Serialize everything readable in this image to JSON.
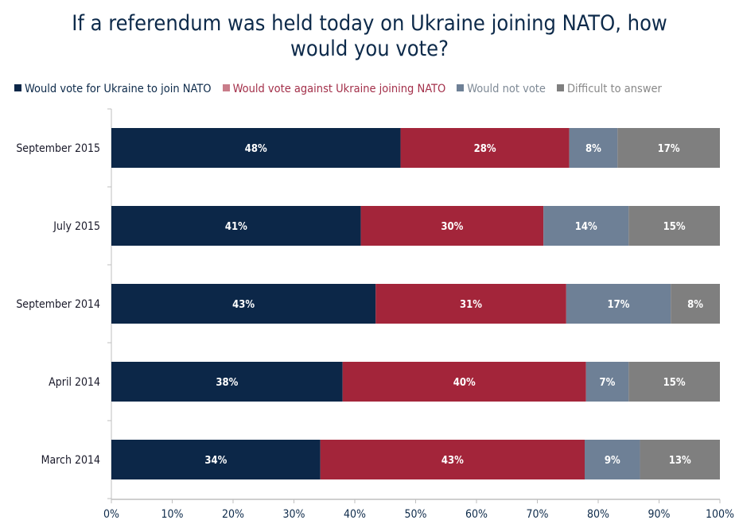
{
  "chart_data": {
    "type": "bar",
    "orientation": "horizontal",
    "stacked": true,
    "title": "If a referendum was held today on Ukraine joining NATO, how would you vote?",
    "title_lines": [
      "If a referendum was held today on Ukraine joining NATO, how",
      "would you vote?"
    ],
    "categories": [
      "September 2015",
      "July 2015",
      "September 2014",
      "April 2014",
      "March 2014"
    ],
    "series": [
      {
        "name": "Would vote for Ukraine to join NATO",
        "color": "#0c2748",
        "legend_color": "#0c2748",
        "text_color": "#0d2a4a",
        "values": [
          48,
          41,
          43,
          38,
          34
        ]
      },
      {
        "name": "Would vote against Ukraine joining NATO",
        "color": "#a3253a",
        "legend_color": "#c97d8a",
        "text_color": "#a3304a",
        "values": [
          28,
          30,
          31,
          40,
          43
        ]
      },
      {
        "name": "Would not vote",
        "color": "#6e8096",
        "legend_color": "#6e8096",
        "text_color": "#7f8a96",
        "values": [
          8,
          14,
          17,
          7,
          9
        ]
      },
      {
        "name": "Difficult to answer",
        "color": "#7f7f7f",
        "legend_color": "#7f7f7f",
        "text_color": "#888888",
        "values": [
          17,
          15,
          8,
          15,
          13
        ]
      }
    ],
    "xlim": [
      0,
      100
    ],
    "xticks": [
      "0%",
      "10%",
      "20%",
      "30%",
      "40%",
      "50%",
      "60%",
      "70%",
      "80%",
      "90%",
      "100%"
    ],
    "xlabel": "",
    "ylabel": "",
    "legend_position": "top",
    "grid": false
  }
}
